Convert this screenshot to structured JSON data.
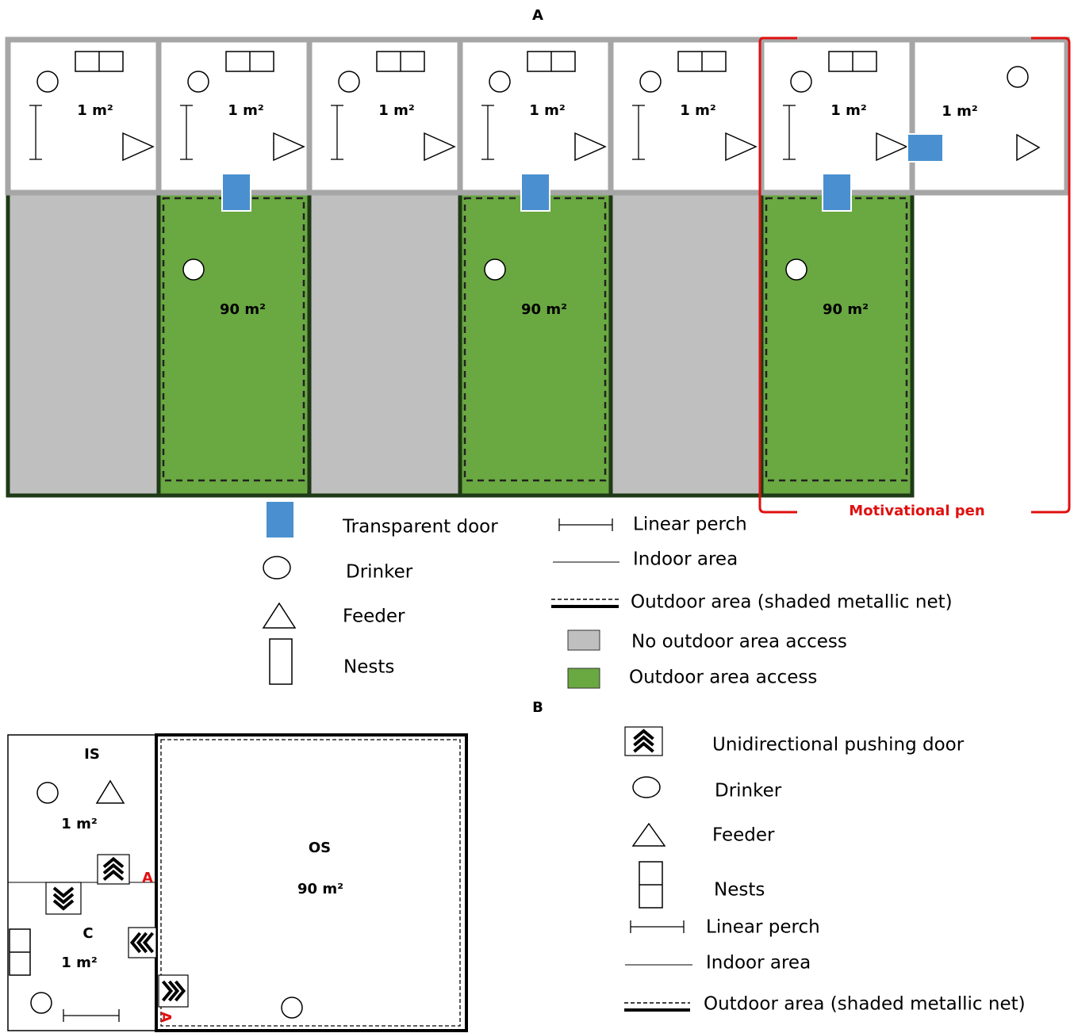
{
  "panel_a": {
    "label": "A",
    "indoor_pens": [
      "1 m²",
      "1 m²",
      "1 m²",
      "1 m²",
      "1 m²",
      "1 m²",
      "1 m²"
    ],
    "outdoor_pens": [
      "90 m²",
      "90 m²",
      "90 m²"
    ],
    "motivational_pen": "Motivational pen",
    "legend": [
      "Transparent door",
      "Drinker",
      "Feeder",
      "Nests",
      "Linear perch",
      "Indoor area",
      "Outdoor area (shaded metallic net)",
      "No outdoor area access",
      "Outdoor area access"
    ]
  },
  "panel_b": {
    "label": "B",
    "rooms": {
      "is_name": "IS",
      "is_area": "1 m²",
      "c_name": "C",
      "c_area": "1 m²",
      "os_name": "OS",
      "os_area": "90 m²"
    },
    "door_labels": [
      "A",
      "A"
    ],
    "legend": [
      "Unidirectional pushing door",
      "Drinker",
      "Feeder",
      "Nests",
      "Linear perch",
      "Indoor area",
      "Outdoor area (shaded metallic net)"
    ]
  }
}
